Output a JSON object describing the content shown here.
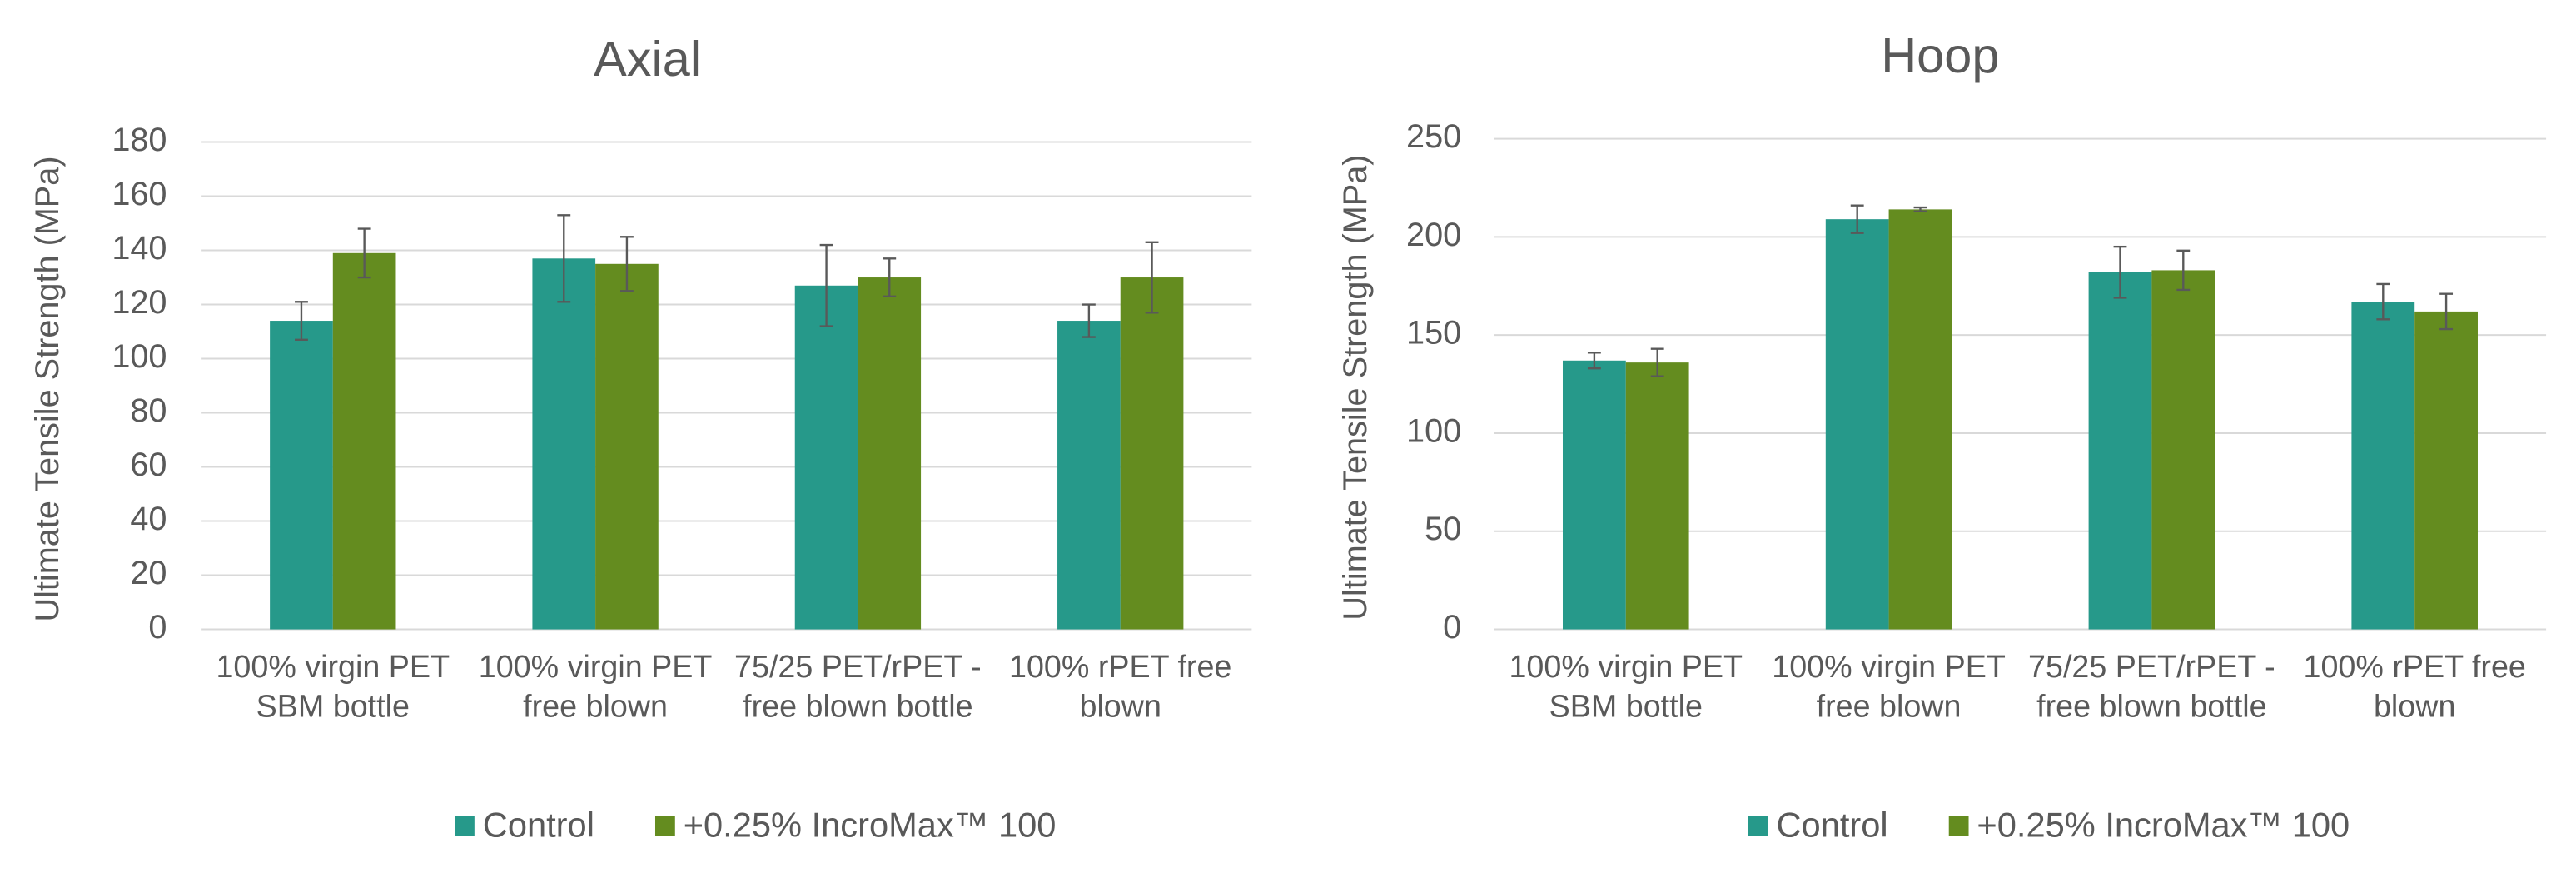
{
  "chart_data": [
    {
      "type": "bar",
      "title": "Axial",
      "y_label": "Ultimate Tensile Strength (MPa)",
      "categories": [
        "100% virgin PET SBM bottle",
        "100% virgin PET free blown",
        "75/25 PET/rPET - free blown bottle",
        "100% rPET free blown"
      ],
      "series": [
        {
          "name": "Control",
          "color": "#26998a",
          "values": [
            114,
            137,
            127,
            114
          ],
          "errors": [
            7,
            16,
            15,
            6
          ]
        },
        {
          "name": "+0.25% IncroMax™ 100",
          "color": "#648c1f",
          "values": [
            139,
            135,
            130,
            130
          ],
          "errors": [
            9,
            10,
            7,
            13
          ]
        }
      ],
      "ylim": [
        0,
        180
      ],
      "yticks": [
        0,
        20,
        40,
        60,
        80,
        100,
        120,
        140,
        160,
        180
      ],
      "grid": true,
      "legend": "bottom"
    },
    {
      "type": "bar",
      "title": "Hoop",
      "y_label": "Ultimate Tensile Strength (MPa)",
      "categories": [
        "100% virgin PET SBM bottle",
        "100% virgin PET free blown",
        "75/25 PET/rPET - free blown bottle",
        "100% rPET free blown"
      ],
      "series": [
        {
          "name": "Control",
          "color": "#26998a",
          "values": [
            137,
            209,
            182,
            167
          ],
          "errors": [
            4,
            7,
            13,
            9
          ]
        },
        {
          "name": "+0.25% IncroMax™ 100",
          "color": "#648c1f",
          "values": [
            136,
            214,
            183,
            162
          ],
          "errors": [
            7,
            1,
            10,
            9
          ]
        }
      ],
      "ylim": [
        0,
        250
      ],
      "yticks": [
        0,
        50,
        100,
        150,
        200,
        250
      ],
      "grid": true,
      "legend": "bottom"
    }
  ]
}
